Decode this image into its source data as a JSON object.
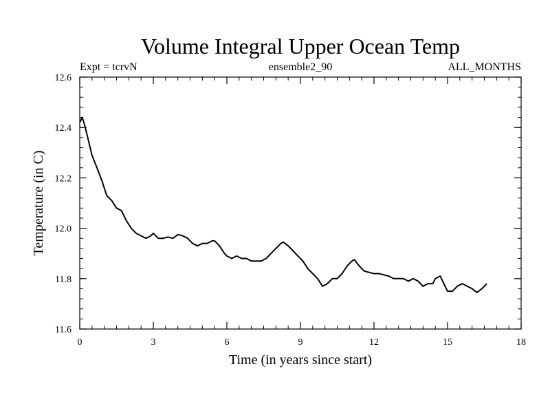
{
  "chart_data": {
    "type": "line",
    "title": "Volume Integral Upper Ocean Temp",
    "subtitle_left": "Expt = tcrvN",
    "subtitle_center": "ensemble2_90",
    "subtitle_right": "ALL_MONTHS",
    "xlabel": "Time (in years since start)",
    "ylabel": "Temperature (in C)",
    "xlim": [
      0,
      18
    ],
    "ylim": [
      11.6,
      12.6
    ],
    "x_ticks": [
      0,
      3,
      6,
      9,
      12,
      15,
      18
    ],
    "x_tick_labels": [
      "0",
      "3",
      "6",
      "9",
      "12",
      "15",
      "18"
    ],
    "y_ticks": [
      11.6,
      11.8,
      12.0,
      12.2,
      12.4,
      12.6
    ],
    "y_tick_labels": [
      "11.6",
      "11.8",
      "12.0",
      "12.2",
      "12.4",
      "12.6"
    ],
    "x_minor_step": 0.5,
    "y_minor_step": 0.04,
    "line_color": "#000000",
    "series": [
      {
        "name": "Temperature",
        "x": [
          0.0,
          0.1,
          0.2,
          0.35,
          0.5,
          0.7,
          0.9,
          1.1,
          1.3,
          1.5,
          1.7,
          1.9,
          2.1,
          2.3,
          2.5,
          2.7,
          2.9,
          3.0,
          3.2,
          3.4,
          3.6,
          3.8,
          4.0,
          4.2,
          4.4,
          4.6,
          4.8,
          5.0,
          5.2,
          5.4,
          5.5,
          5.7,
          5.9,
          6.0,
          6.2,
          6.4,
          6.6,
          6.8,
          7.0,
          7.2,
          7.4,
          7.6,
          7.8,
          8.0,
          8.2,
          8.3,
          8.5,
          8.7,
          8.9,
          9.1,
          9.3,
          9.5,
          9.7,
          9.9,
          10.1,
          10.3,
          10.5,
          10.7,
          10.9,
          11.1,
          11.2,
          11.4,
          11.6,
          11.8,
          12.0,
          12.2,
          12.4,
          12.6,
          12.8,
          13.0,
          13.2,
          13.4,
          13.6,
          13.8,
          14.0,
          14.2,
          14.4,
          14.5,
          14.7,
          14.9,
          15.0,
          15.2,
          15.4,
          15.6,
          15.8,
          16.0,
          16.2,
          16.4,
          16.6
        ],
        "values": [
          12.42,
          12.44,
          12.41,
          12.35,
          12.29,
          12.24,
          12.19,
          12.13,
          12.11,
          12.08,
          12.07,
          12.03,
          12.0,
          11.98,
          11.97,
          11.96,
          11.97,
          11.98,
          11.96,
          11.96,
          11.965,
          11.96,
          11.975,
          11.97,
          11.96,
          11.94,
          11.93,
          11.94,
          11.94,
          11.95,
          11.95,
          11.93,
          11.9,
          11.89,
          11.88,
          11.89,
          11.88,
          11.88,
          11.87,
          11.87,
          11.87,
          11.88,
          11.9,
          11.92,
          11.94,
          11.945,
          11.93,
          11.91,
          11.89,
          11.87,
          11.84,
          11.82,
          11.8,
          11.77,
          11.78,
          11.8,
          11.8,
          11.82,
          11.85,
          11.87,
          11.875,
          11.85,
          11.83,
          11.825,
          11.82,
          11.82,
          11.815,
          11.81,
          11.8,
          11.8,
          11.8,
          11.79,
          11.8,
          11.79,
          11.77,
          11.78,
          11.78,
          11.8,
          11.81,
          11.77,
          11.75,
          11.75,
          11.77,
          11.78,
          11.77,
          11.76,
          11.745,
          11.76,
          11.78
        ]
      }
    ]
  }
}
